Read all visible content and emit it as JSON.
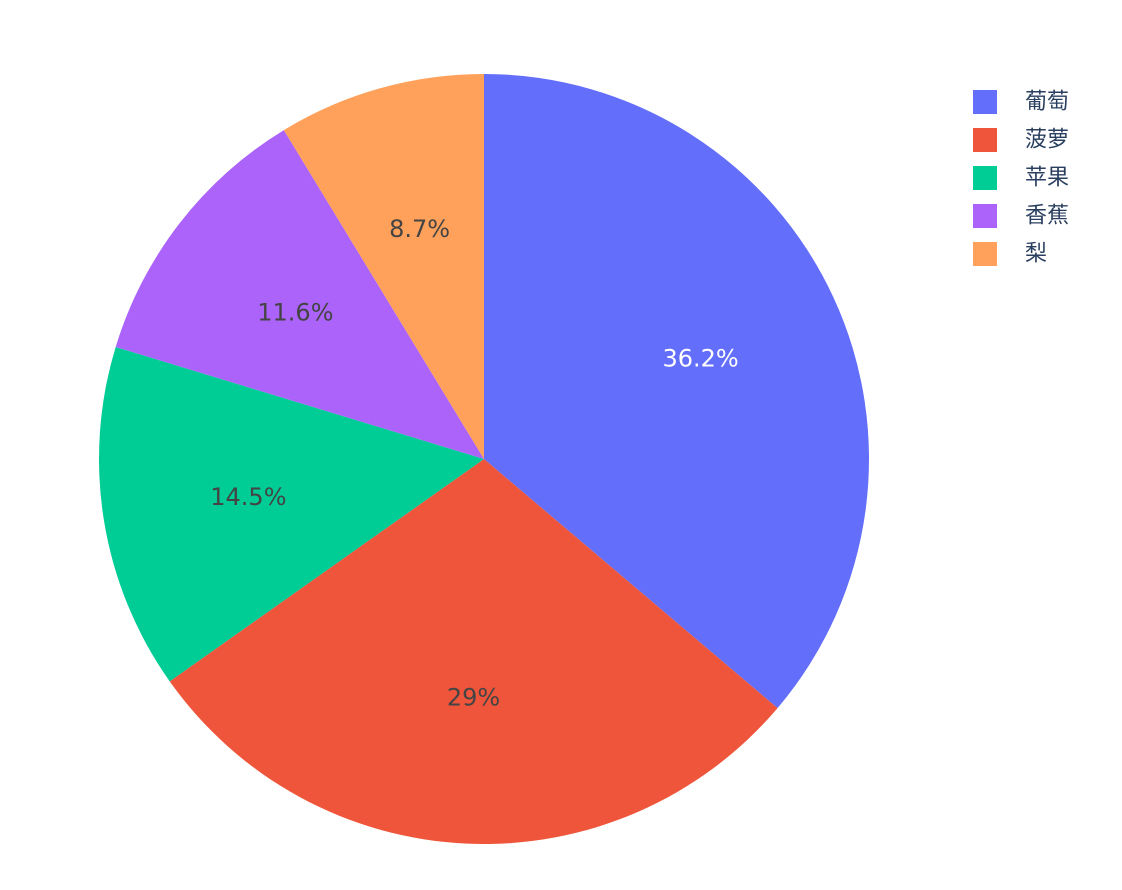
{
  "chart_data": {
    "type": "pie",
    "title": "",
    "sort": "descending",
    "direction": "clockwise",
    "rotation_start": "top",
    "slices": [
      {
        "label": "葡萄",
        "percent": 36.2,
        "percent_label": "36.2%",
        "color": "#636efa",
        "text_color": "#ffffff"
      },
      {
        "label": "菠萝",
        "percent": 29,
        "percent_label": "29%",
        "color": "#ef553b",
        "text_color": "#444444"
      },
      {
        "label": "苹果",
        "percent": 14.5,
        "percent_label": "14.5%",
        "color": "#00cc96",
        "text_color": "#444444"
      },
      {
        "label": "香蕉",
        "percent": 11.6,
        "percent_label": "11.6%",
        "color": "#ab63fa",
        "text_color": "#444444"
      },
      {
        "label": "梨",
        "percent": 8.7,
        "percent_label": "8.7%",
        "color": "#ffa15a",
        "text_color": "#444444"
      }
    ],
    "legend": {
      "placement": "top-right",
      "order": [
        "葡萄",
        "菠萝",
        "苹果",
        "香蕉",
        "梨"
      ]
    }
  }
}
